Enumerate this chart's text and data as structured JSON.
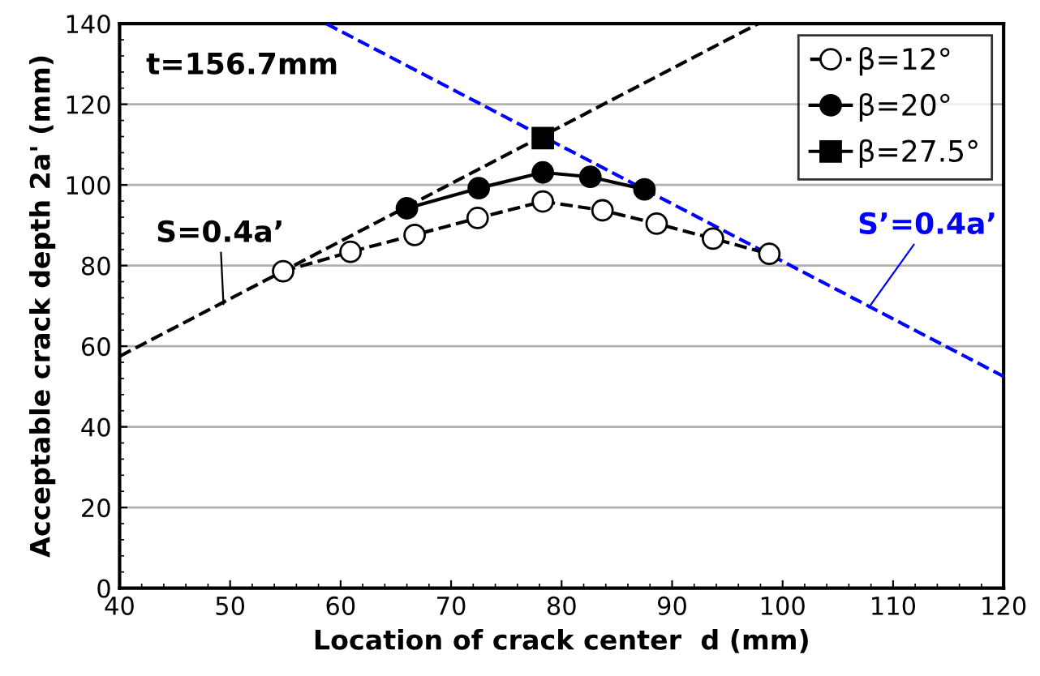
{
  "chart_data": {
    "type": "line",
    "xlabel": "Location of crack center  d (mm)",
    "ylabel": "Acceptable crack depth 2a' (mm)",
    "xlim": [
      40,
      120
    ],
    "xticks": [
      40,
      50,
      60,
      70,
      80,
      90,
      100,
      110,
      120
    ],
    "ylim": [
      0,
      140
    ],
    "yticks": [
      0,
      20,
      40,
      60,
      80,
      100,
      120,
      140
    ],
    "grid": "y",
    "legend": "top right",
    "series": [
      {
        "name": "β=12°",
        "color": "#000000",
        "marker": "circle",
        "line_style": "dashed",
        "x": [
          54.8,
          60.9,
          66.7,
          72.4,
          78.3,
          83.7,
          88.6,
          93.7,
          98.8
        ],
        "values": [
          78.6,
          83.4,
          87.6,
          91.8,
          95.9,
          93.7,
          90.4,
          86.7,
          82.9
        ]
      },
      {
        "name": "β=20°",
        "color": "#000000",
        "marker": "circle",
        "line_style": "solid",
        "x": [
          66.0,
          72.5,
          78.3,
          82.6,
          87.5
        ],
        "values": [
          94.2,
          99.2,
          103.1,
          102.0,
          98.9
        ]
      },
      {
        "name": "β=27.5°",
        "color": "#000000",
        "marker": "square",
        "line_style": "solid",
        "x": [
          78.3
        ],
        "values": [
          111.6
        ]
      },
      {
        "color": "#000000",
        "marker": "none",
        "line_style": "dashed",
        "x": [
          40,
          97.8
        ],
        "values": [
          57.5,
          140
        ]
      },
      {
        "color": "#0000ff",
        "marker": "none",
        "line_style": "dashed",
        "x": [
          58.7,
          120
        ],
        "values": [
          140,
          52.5
        ]
      }
    ],
    "annotations": [
      "t=156.7mm",
      {
        "text": "S=0.4a’",
        "x": 49.4,
        "y": 70.4
      },
      {
        "text": "S’=0.4a’",
        "x": 107.8,
        "y": 69.6
      }
    ]
  }
}
